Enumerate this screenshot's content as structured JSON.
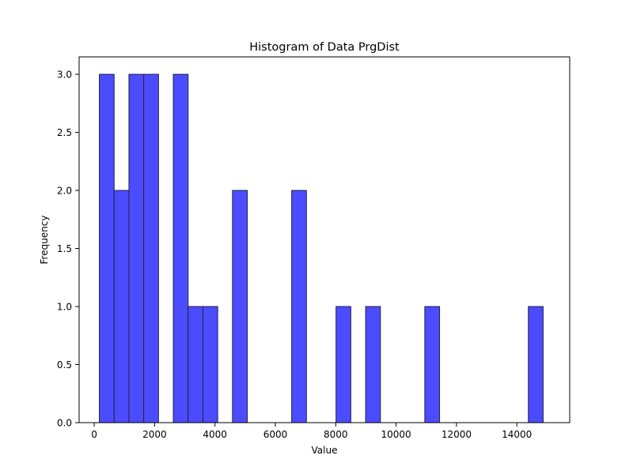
{
  "chart_data": {
    "type": "histogram",
    "title": "Histogram of Data PrgDist",
    "xlabel": "Value",
    "ylabel": "Frequency",
    "xlim": [
      -500,
      15750
    ],
    "ylim": [
      0,
      3.15
    ],
    "x_ticks": [
      0,
      2000,
      4000,
      6000,
      8000,
      10000,
      12000,
      14000
    ],
    "x_tick_labels": [
      "0",
      "2000",
      "4000",
      "6000",
      "8000",
      "10000",
      "12000",
      "14000"
    ],
    "y_ticks": [
      0,
      0.5,
      1.0,
      1.5,
      2.0,
      2.5,
      3.0
    ],
    "y_tick_labels": [
      "0.0",
      "0.5",
      "1.0",
      "1.5",
      "2.0",
      "2.5",
      "3.0"
    ],
    "grid": false,
    "bar_color": "#4c4cff",
    "edge_color": "#222244",
    "bins": [
      {
        "x0": 170,
        "x1": 660,
        "count": 3
      },
      {
        "x0": 660,
        "x1": 1150,
        "count": 2
      },
      {
        "x0": 1150,
        "x1": 1640,
        "count": 3
      },
      {
        "x0": 1640,
        "x1": 2130,
        "count": 3
      },
      {
        "x0": 2130,
        "x1": 2620,
        "count": 0
      },
      {
        "x0": 2620,
        "x1": 3110,
        "count": 3
      },
      {
        "x0": 3110,
        "x1": 3600,
        "count": 1
      },
      {
        "x0": 3600,
        "x1": 4090,
        "count": 1
      },
      {
        "x0": 4090,
        "x1": 4580,
        "count": 0
      },
      {
        "x0": 4580,
        "x1": 5070,
        "count": 2
      },
      {
        "x0": 5070,
        "x1": 5560,
        "count": 0
      },
      {
        "x0": 5560,
        "x1": 6050,
        "count": 0
      },
      {
        "x0": 6050,
        "x1": 6540,
        "count": 0
      },
      {
        "x0": 6540,
        "x1": 7030,
        "count": 2
      },
      {
        "x0": 7030,
        "x1": 7520,
        "count": 0
      },
      {
        "x0": 7520,
        "x1": 8010,
        "count": 0
      },
      {
        "x0": 8010,
        "x1": 8500,
        "count": 1
      },
      {
        "x0": 8500,
        "x1": 8990,
        "count": 0
      },
      {
        "x0": 8990,
        "x1": 9480,
        "count": 1
      },
      {
        "x0": 9480,
        "x1": 9970,
        "count": 0
      },
      {
        "x0": 9970,
        "x1": 10460,
        "count": 0
      },
      {
        "x0": 10460,
        "x1": 10950,
        "count": 0
      },
      {
        "x0": 10950,
        "x1": 11440,
        "count": 1
      },
      {
        "x0": 11440,
        "x1": 11930,
        "count": 0
      },
      {
        "x0": 11930,
        "x1": 12420,
        "count": 0
      },
      {
        "x0": 12420,
        "x1": 12910,
        "count": 0
      },
      {
        "x0": 12910,
        "x1": 13400,
        "count": 0
      },
      {
        "x0": 13400,
        "x1": 13890,
        "count": 0
      },
      {
        "x0": 13890,
        "x1": 14380,
        "count": 0
      },
      {
        "x0": 14380,
        "x1": 14870,
        "count": 1
      }
    ]
  }
}
